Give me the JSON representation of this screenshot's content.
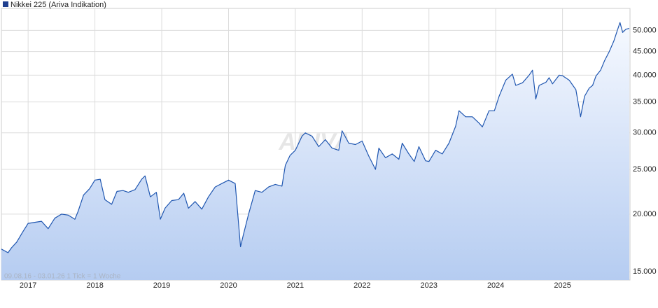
{
  "chart_data": {
    "type": "line",
    "title": "Nikkei 225 (Ariva Indikation)",
    "footnote": "09.08.16 - 03.01.26   1 Tick = 1 Woche",
    "watermark": "ARIVA",
    "log_scale": true,
    "grid": true,
    "x": [
      2016.6,
      2016.7,
      2016.75,
      2016.83,
      2016.92,
      2017.0,
      2017.1,
      2017.2,
      2017.3,
      2017.4,
      2017.5,
      2017.6,
      2017.7,
      2017.75,
      2017.83,
      2017.92,
      2018.0,
      2018.08,
      2018.15,
      2018.25,
      2018.33,
      2018.42,
      2018.5,
      2018.6,
      2018.7,
      2018.75,
      2018.83,
      2018.92,
      2018.98,
      2019.05,
      2019.15,
      2019.25,
      2019.33,
      2019.4,
      2019.5,
      2019.6,
      2019.7,
      2019.8,
      2019.9,
      2020.0,
      2020.1,
      2020.18,
      2020.22,
      2020.3,
      2020.4,
      2020.5,
      2020.6,
      2020.7,
      2020.8,
      2020.85,
      2020.92,
      2021.0,
      2021.1,
      2021.15,
      2021.25,
      2021.35,
      2021.45,
      2021.55,
      2021.65,
      2021.7,
      2021.8,
      2021.9,
      2022.0,
      2022.1,
      2022.2,
      2022.25,
      2022.35,
      2022.45,
      2022.55,
      2022.6,
      2022.7,
      2022.78,
      2022.85,
      2022.95,
      2023.0,
      2023.1,
      2023.2,
      2023.3,
      2023.4,
      2023.45,
      2023.55,
      2023.65,
      2023.75,
      2023.8,
      2023.9,
      2023.98,
      2024.05,
      2024.15,
      2024.25,
      2024.3,
      2024.4,
      2024.5,
      2024.55,
      2024.6,
      2024.65,
      2024.75,
      2024.8,
      2024.85,
      2024.95,
      2025.0,
      2025.1,
      2025.2,
      2025.27,
      2025.33,
      2025.4,
      2025.45,
      2025.5,
      2025.57,
      2025.63,
      2025.7,
      2025.77,
      2025.82,
      2025.86,
      2025.9,
      2025.95,
      2026.0
    ],
    "series": [
      {
        "name": "Nikkei 225 (Ariva Indikation)",
        "color": "#1f56b0",
        "values": [
          16800,
          16500,
          16900,
          17400,
          18300,
          19100,
          19200,
          19300,
          18600,
          19600,
          20000,
          19900,
          19500,
          20300,
          22000,
          22700,
          23700,
          23800,
          21500,
          21000,
          22400,
          22500,
          22300,
          22600,
          23800,
          24200,
          21800,
          22300,
          19500,
          20600,
          21400,
          21500,
          22200,
          20600,
          21300,
          20500,
          21800,
          22900,
          23300,
          23700,
          23300,
          17000,
          18000,
          20000,
          22500,
          22300,
          22900,
          23200,
          23000,
          25500,
          26800,
          27500,
          29500,
          30000,
          29500,
          28000,
          29000,
          27800,
          27500,
          30300,
          28500,
          28300,
          28800,
          26700,
          25000,
          27800,
          26500,
          27000,
          26300,
          28500,
          27000,
          26000,
          28000,
          26100,
          26000,
          27500,
          27000,
          28500,
          31000,
          33500,
          32500,
          32500,
          31500,
          30900,
          33500,
          33500,
          36000,
          39000,
          40200,
          38000,
          38500,
          40000,
          41000,
          35500,
          38000,
          38600,
          39500,
          38300,
          40000,
          39900,
          39000,
          37200,
          32500,
          36000,
          37500,
          38000,
          39800,
          41000,
          43000,
          45000,
          47500,
          50000,
          52000,
          49500,
          50300,
          50500
        ]
      }
    ],
    "xlim": [
      2016.6,
      2026.01
    ],
    "xticks": [
      2017,
      2018,
      2019,
      2020,
      2021,
      2022,
      2023,
      2024,
      2025
    ],
    "ylim": [
      14400,
      55800
    ],
    "yticks": [
      {
        "value": 15000,
        "label": "15.000"
      },
      {
        "value": 20000,
        "label": "20.000"
      },
      {
        "value": 25000,
        "label": "25.000"
      },
      {
        "value": 30000,
        "label": "30.000"
      },
      {
        "value": 35000,
        "label": "35.000"
      },
      {
        "value": 40000,
        "label": "40.000"
      },
      {
        "value": 45000,
        "label": "45.000"
      },
      {
        "value": 50000,
        "label": "50.000"
      }
    ]
  }
}
